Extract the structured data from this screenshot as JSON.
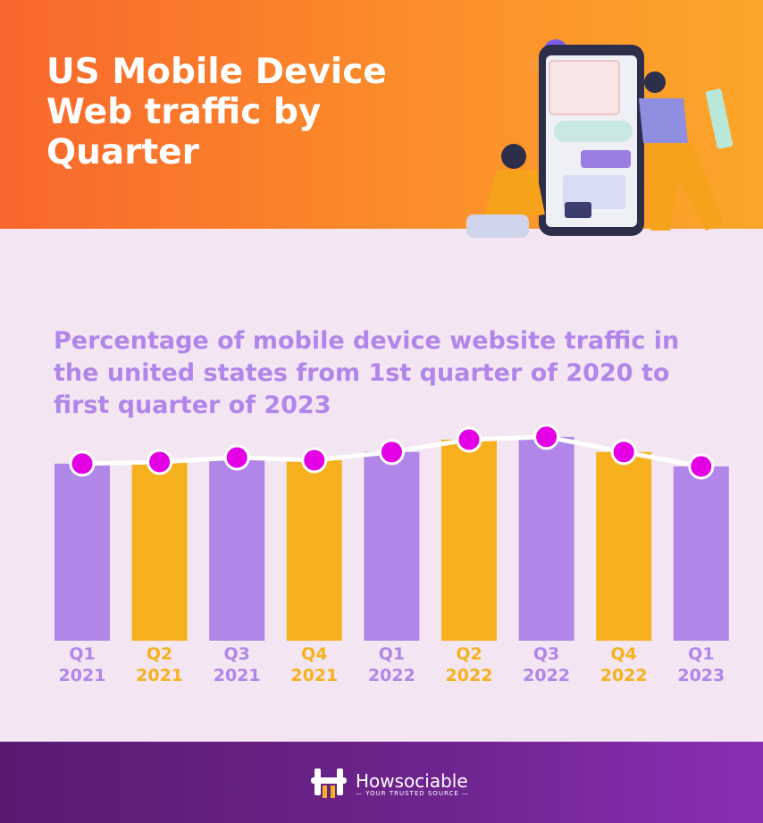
{
  "chart_data": {
    "type": "bar",
    "title": "US Mobile Device Web traffic by Quarter",
    "subtitle": "Percentage of mobile device website traffic in the united states from 1st quarter of 2020 to first quarter of 2023",
    "categories": [
      "Q1 2021",
      "Q2 2021",
      "Q3 2021",
      "Q4 2021",
      "Q1 2022",
      "Q2 2022",
      "Q3 2022",
      "Q4 2022",
      "Q1 2023"
    ],
    "values": [
      51.5,
      52.0,
      53.3,
      52.5,
      54.9,
      58.5,
      59.3,
      54.9,
      50.7
    ],
    "colors": [
      "#b086e8",
      "#f7b11e",
      "#b086e8",
      "#f7b11e",
      "#b086e8",
      "#f7b11e",
      "#b086e8",
      "#f7b11e",
      "#b086e8"
    ],
    "line_color": "#ffffff",
    "marker_color": "#e400e4",
    "ylim": [
      0,
      60
    ]
  },
  "footer": {
    "brand": "Howsociable",
    "tagline": "— YOUR TRUSTED SOURCE —"
  }
}
